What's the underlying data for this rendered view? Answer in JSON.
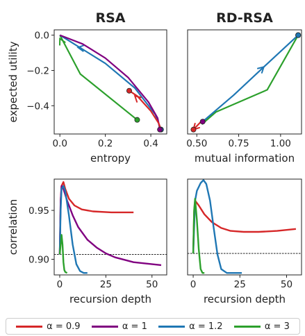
{
  "colors": {
    "alpha_0.9": "#d62728",
    "alpha_1": "#800080",
    "alpha_1.2": "#1f77b4",
    "alpha_3": "#2ca02c"
  },
  "legend": [
    {
      "label": "α = 0.9",
      "color": "#d62728"
    },
    {
      "label": "α = 1",
      "color": "#800080"
    },
    {
      "label": "α = 1.2",
      "color": "#1f77b4"
    },
    {
      "label": "α = 3",
      "color": "#2ca02c"
    }
  ],
  "chart_data": [
    {
      "type": "line",
      "title": "RSA",
      "xlabel": "entropy",
      "ylabel": "expected utility",
      "xlim": [
        -0.025,
        0.47
      ],
      "ylim": [
        -0.56,
        0.03
      ],
      "xticks": [
        0.0,
        0.2,
        0.4
      ],
      "xtick_labels": [
        "0.0",
        "0.2",
        "0.4"
      ],
      "yticks": [
        0.0,
        -0.2,
        -0.4
      ],
      "ytick_labels": [
        "0.0",
        "−0.2",
        "−0.4"
      ],
      "series": [
        {
          "key": "alpha_3",
          "points": [
            [
              0.0,
              0.0
            ],
            [
              0.09,
              -0.22
            ],
            [
              0.34,
              -0.48
            ]
          ],
          "start": [
            0.34,
            -0.48
          ],
          "arrows": [
            [
              0.04,
              -0.12,
              0.0,
              -0.02
            ]
          ]
        },
        {
          "key": "alpha_1.2",
          "points": [
            [
              0.0,
              0.0
            ],
            [
              0.2,
              -0.16
            ],
            [
              0.33,
              -0.3
            ],
            [
              0.42,
              -0.45
            ],
            [
              0.445,
              -0.535
            ]
          ],
          "start": [
            0.445,
            -0.535
          ],
          "arrows": [
            [
              0.14,
              -0.08,
              0.08,
              -0.07
            ]
          ]
        },
        {
          "key": "alpha_1",
          "points": [
            [
              0.0,
              0.0
            ],
            [
              0.1,
              -0.05
            ],
            [
              0.2,
              -0.13
            ],
            [
              0.3,
              -0.24
            ],
            [
              0.39,
              -0.38
            ],
            [
              0.43,
              -0.47
            ],
            [
              0.44,
              -0.535
            ]
          ],
          "start": [
            0.44,
            -0.535
          ],
          "arrows": []
        },
        {
          "key": "alpha_0.9",
          "points": [
            [
              0.305,
              -0.315
            ],
            [
              0.34,
              -0.345
            ],
            [
              0.4,
              -0.43
            ],
            [
              0.435,
              -0.5
            ],
            [
              0.445,
              -0.535
            ]
          ],
          "start": [
            0.305,
            -0.315
          ],
          "arrows": [
            [
              0.36,
              -0.38,
              0.33,
              -0.345
            ]
          ]
        }
      ]
    },
    {
      "type": "line",
      "title": "RD-RSA",
      "xlabel": "mutual information",
      "ylabel": "",
      "xlim": [
        0.445,
        1.125
      ],
      "ylim": [
        -0.56,
        0.03
      ],
      "xticks": [
        0.5,
        0.75,
        1.0
      ],
      "xtick_labels": [
        "0.50",
        "0.75",
        "1.00"
      ],
      "yticks": [],
      "ytick_labels": [],
      "series": [
        {
          "key": "alpha_3",
          "points": [
            [
              1.105,
              0.0
            ],
            [
              0.92,
              -0.31
            ],
            [
              0.615,
              -0.435
            ],
            [
              0.53,
              -0.505
            ]
          ],
          "start": [
            1.105,
            0.0
          ],
          "arrows": []
        },
        {
          "key": "alpha_1.2",
          "points": [
            [
              0.535,
              -0.49
            ],
            [
              0.72,
              -0.34
            ],
            [
              0.9,
              -0.18
            ],
            [
              1.105,
              0.0
            ]
          ],
          "start": [
            1.105,
            0.0
          ],
          "arrows": [
            [
              0.82,
              -0.25,
              0.9,
              -0.18
            ]
          ]
        },
        {
          "key": "alpha_1",
          "points": [
            [
              0.535,
              -0.505
            ],
            [
              0.54,
              -0.475
            ]
          ],
          "start": [
            0.535,
            -0.49
          ],
          "arrows": []
        },
        {
          "key": "alpha_0.9",
          "points": [
            [
              0.535,
              -0.48
            ],
            [
              0.48,
              -0.535
            ]
          ],
          "start": [
            0.48,
            -0.535
          ],
          "arrows": [
            [
              0.52,
              -0.495,
              0.48,
              -0.535
            ]
          ]
        }
      ]
    },
    {
      "type": "line",
      "title": "",
      "xlabel": "recursion depth",
      "ylabel": "correlation",
      "xlim": [
        -3,
        58
      ],
      "ylim": [
        0.884,
        0.982
      ],
      "xticks": [
        0,
        25,
        50
      ],
      "xtick_labels": [
        "0",
        "25",
        "50"
      ],
      "yticks": [
        0.9,
        0.95
      ],
      "ytick_labels": [
        "0.90",
        "0.95"
      ],
      "reference_y": 0.905,
      "series": [
        {
          "key": "alpha_0.9",
          "points": [
            [
              0,
              0.905
            ],
            [
              0.5,
              0.96
            ],
            [
              1,
              0.975
            ],
            [
              2,
              0.979
            ],
            [
              3,
              0.972
            ],
            [
              5,
              0.962
            ],
            [
              8,
              0.955
            ],
            [
              12,
              0.951
            ],
            [
              18,
              0.949
            ],
            [
              28,
              0.948
            ],
            [
              40,
              0.948
            ]
          ]
        },
        {
          "key": "alpha_1",
          "points": [
            [
              0,
              0.905
            ],
            [
              0.5,
              0.96
            ],
            [
              1,
              0.975
            ],
            [
              2,
              0.972
            ],
            [
              4,
              0.96
            ],
            [
              7,
              0.945
            ],
            [
              10,
              0.933
            ],
            [
              15,
              0.92
            ],
            [
              20,
              0.912
            ],
            [
              25,
              0.906
            ],
            [
              30,
              0.902
            ],
            [
              40,
              0.897
            ],
            [
              55,
              0.894
            ]
          ]
        },
        {
          "key": "alpha_1.2",
          "points": [
            [
              0,
              0.905
            ],
            [
              0.5,
              0.95
            ],
            [
              1,
              0.972
            ],
            [
              2,
              0.975
            ],
            [
              3,
              0.97
            ],
            [
              5,
              0.945
            ],
            [
              7,
              0.915
            ],
            [
              9,
              0.895
            ],
            [
              11,
              0.888
            ],
            [
              13,
              0.886
            ],
            [
              15,
              0.886
            ]
          ]
        },
        {
          "key": "alpha_3",
          "points": [
            [
              0,
              0.905
            ],
            [
              0.5,
              0.915
            ],
            [
              1,
              0.925
            ],
            [
              1.5,
              0.915
            ],
            [
              2,
              0.897
            ],
            [
              2.5,
              0.889
            ],
            [
              3,
              0.887
            ],
            [
              4,
              0.886
            ]
          ]
        }
      ]
    },
    {
      "type": "line",
      "title": "",
      "xlabel": "recursion depth",
      "ylabel": "",
      "xlim": [
        -3,
        58
      ],
      "ylim": [
        0.884,
        0.982
      ],
      "xticks": [
        0,
        25,
        50
      ],
      "xtick_labels": [
        "0",
        "25",
        "50"
      ],
      "yticks": [],
      "ytick_labels": [],
      "reference_y": 0.906,
      "series": [
        {
          "key": "alpha_0.9",
          "points": [
            [
              0,
              0.906
            ],
            [
              0.5,
              0.948
            ],
            [
              1,
              0.96
            ],
            [
              3,
              0.955
            ],
            [
              6,
              0.946
            ],
            [
              10,
              0.938
            ],
            [
              15,
              0.932
            ],
            [
              20,
              0.929
            ],
            [
              27,
              0.928
            ],
            [
              35,
              0.928
            ],
            [
              45,
              0.929
            ],
            [
              55,
              0.931
            ]
          ]
        },
        {
          "key": "alpha_1.2",
          "points": [
            [
              0,
              0.906
            ],
            [
              1,
              0.96
            ],
            [
              2,
              0.97
            ],
            [
              4,
              0.978
            ],
            [
              5.5,
              0.981
            ],
            [
              7,
              0.977
            ],
            [
              9,
              0.96
            ],
            [
              11,
              0.932
            ],
            [
              13,
              0.905
            ],
            [
              15,
              0.89
            ],
            [
              18,
              0.886
            ],
            [
              26,
              0.886
            ]
          ]
        },
        {
          "key": "alpha_3",
          "points": [
            [
              0,
              0.906
            ],
            [
              0.5,
              0.95
            ],
            [
              1,
              0.962
            ],
            [
              2,
              0.94
            ],
            [
              3,
              0.91
            ],
            [
              4,
              0.89
            ],
            [
              5,
              0.886
            ],
            [
              6,
              0.886
            ]
          ]
        }
      ]
    }
  ]
}
